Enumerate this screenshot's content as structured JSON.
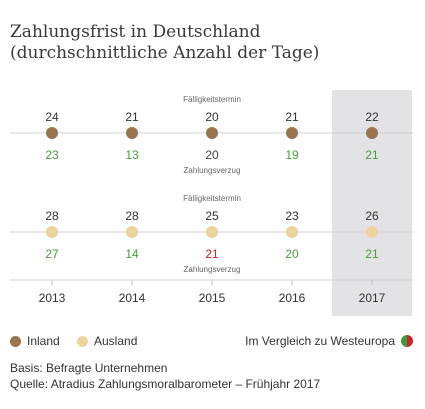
{
  "title_line1": "Zahlungsfrist in Deutschland",
  "title_line2": "(durchschnittliche Anzahl der Tage)",
  "legend": {
    "inland": "Inland",
    "ausland": "Ausland",
    "comparison": "Im Vergleich zu Westeuropa"
  },
  "footnote_basis": "Basis: Befragte Unternehmen",
  "footnote_source": "Quelle: Atradius Zahlungsmoralbarometer – Frühjahr 2017",
  "colors": {
    "inland": "#9a7350",
    "ausland": "#ecd3a2",
    "green": "#4c9a3d",
    "red": "#c8272e",
    "neutral": "#444444",
    "highlight": "#e3e3e5"
  },
  "chart_data": {
    "type": "table",
    "years": [
      "2013",
      "2014",
      "2015",
      "2016",
      "2017"
    ],
    "highlight_year": "2017",
    "series": [
      {
        "name": "Inland",
        "top_label": "Fälligkeitstermin",
        "bottom_label": "Zahlungsverzug",
        "label_column": 2,
        "faelligkeitstermin": [
          24,
          21,
          20,
          21,
          22
        ],
        "zahlungsverzug": [
          23,
          13,
          20,
          19,
          21
        ],
        "verzug_compare": [
          "better",
          "better",
          "equal",
          "better",
          "better"
        ]
      },
      {
        "name": "Ausland",
        "top_label": "Fälligkeitstermin",
        "bottom_label": "Zahlungsverzug",
        "label_column": 2,
        "faelligkeitstermin": [
          28,
          28,
          25,
          23,
          26
        ],
        "zahlungsverzug": [
          27,
          14,
          21,
          20,
          21
        ],
        "verzug_compare": [
          "better",
          "better",
          "worse",
          "better",
          "better"
        ]
      }
    ]
  }
}
